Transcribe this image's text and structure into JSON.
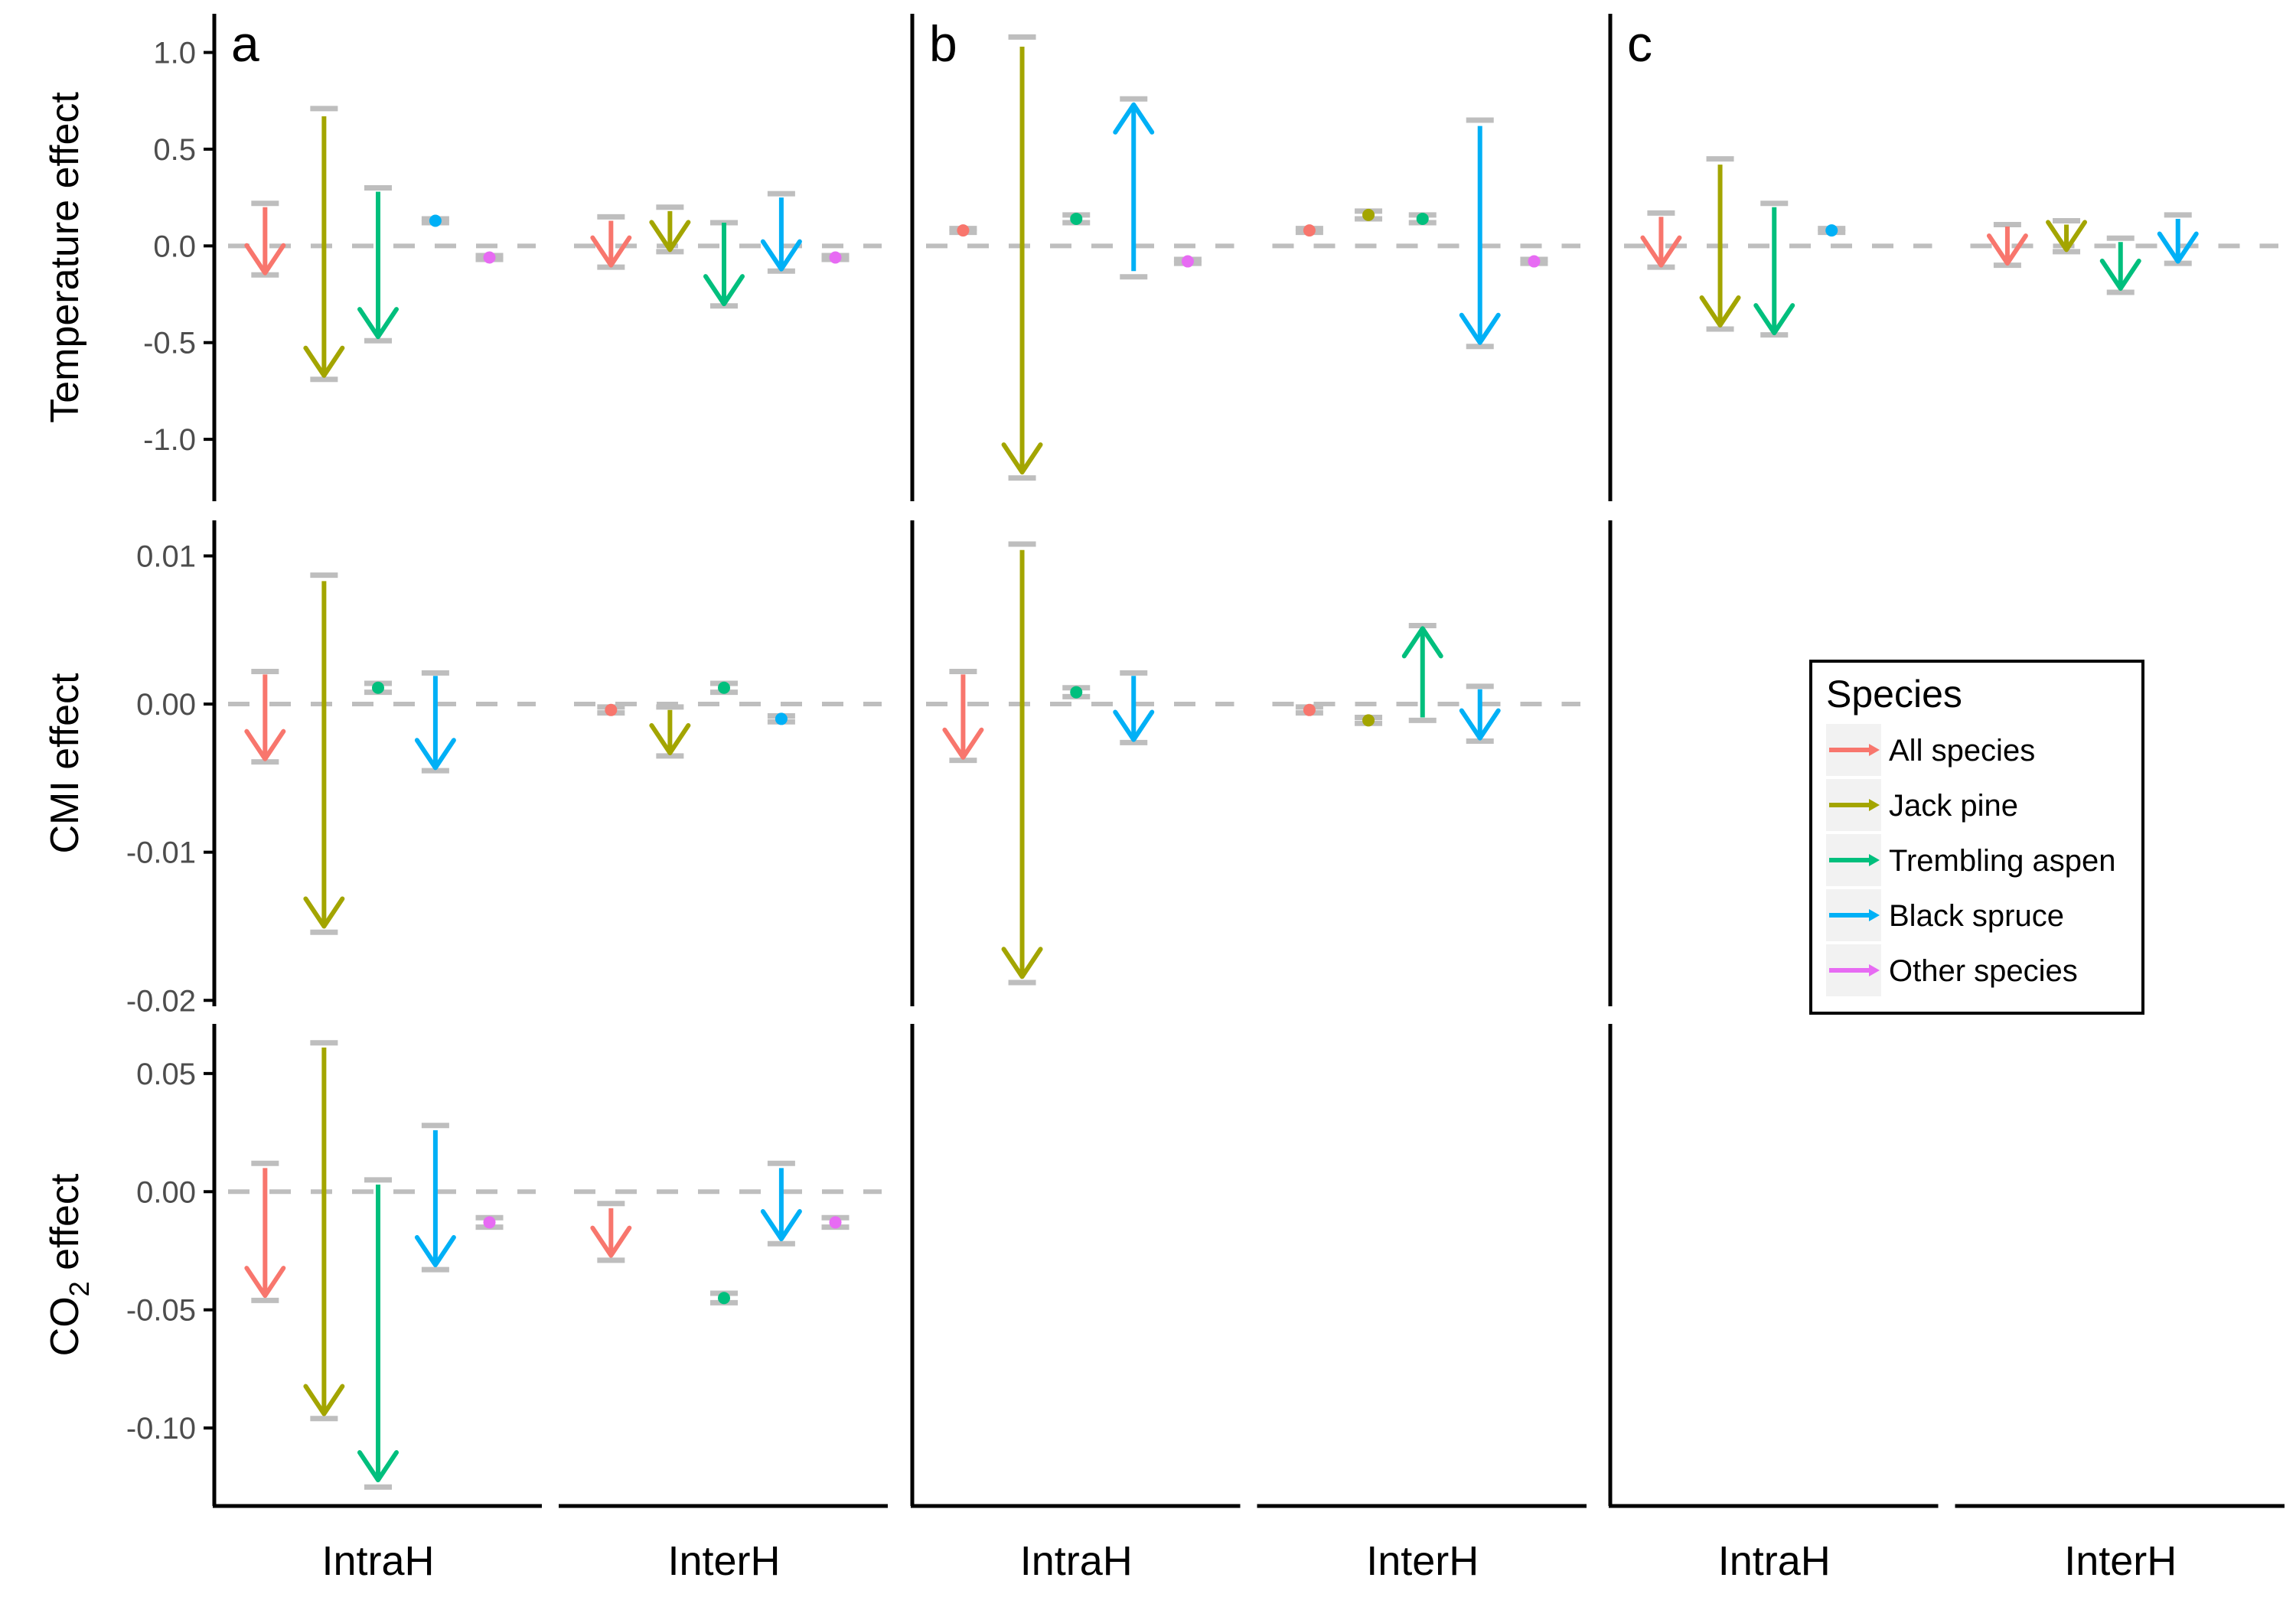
{
  "chart_data": {
    "type": "arrow-effects",
    "panels": [
      {
        "label": "a"
      },
      {
        "label": "b"
      },
      {
        "label": "c"
      }
    ],
    "groups": [
      "IntraH",
      "InterH"
    ],
    "rows": [
      {
        "ylabel": "Temperature effect",
        "ylim": [
          -1.32,
          1.2
        ],
        "yticks": [
          1.0,
          0.5,
          0.0,
          -0.5,
          -1.0
        ],
        "yticklabels": [
          "1.0",
          "0.5",
          "0.0",
          "-0.5",
          "-1.0"
        ]
      },
      {
        "ylabel": "CMI effect",
        "ylim": [
          -0.0204,
          0.0124
        ],
        "yticks": [
          0.01,
          0.0,
          -0.01,
          -0.02
        ],
        "yticklabels": [
          "0.01",
          "0.00",
          "-0.01",
          "-0.02"
        ]
      },
      {
        "ylabel": "CO",
        "ylabel_sub": "2",
        "ylabel_suffix": " effect",
        "ylim": [
          -0.133,
          0.071
        ],
        "yticks": [
          0.05,
          0.0,
          -0.05,
          -0.1
        ],
        "yticklabels": [
          "0.05",
          "0.00",
          "-0.05",
          "-0.10"
        ]
      }
    ],
    "species": [
      {
        "name": "All species",
        "color": "#F8766D"
      },
      {
        "name": "Jack pine",
        "color": "#A3A500"
      },
      {
        "name": "Trembling aspen",
        "color": "#00BF7D"
      },
      {
        "name": "Black spruce",
        "color": "#00B0F6"
      },
      {
        "name": "Other species",
        "color": "#E76BF3"
      }
    ],
    "legend": {
      "title": "Species",
      "position": "inside panel c, CMI row"
    },
    "reference_line": 0,
    "series": [
      {
        "row": 0,
        "panel": 0,
        "group": 0,
        "species": 0,
        "start": 0.2,
        "end": -0.14,
        "ci": [
          -0.15,
          0.22
        ]
      },
      {
        "row": 0,
        "panel": 0,
        "group": 0,
        "species": 1,
        "start": 0.67,
        "end": -0.67,
        "ci": [
          -0.69,
          0.71
        ]
      },
      {
        "row": 0,
        "panel": 0,
        "group": 0,
        "species": 2,
        "start": 0.28,
        "end": -0.47,
        "ci": [
          -0.49,
          0.3
        ]
      },
      {
        "row": 0,
        "panel": 0,
        "group": 0,
        "species": 3,
        "start": 0.13,
        "end": 0.13,
        "ci": [
          0.12,
          0.14
        ]
      },
      {
        "row": 0,
        "panel": 0,
        "group": 0,
        "species": 4,
        "start": -0.06,
        "end": -0.06,
        "ci": [
          -0.07,
          -0.05
        ]
      },
      {
        "row": 0,
        "panel": 0,
        "group": 1,
        "species": 0,
        "start": 0.13,
        "end": -0.1,
        "ci": [
          -0.11,
          0.15
        ]
      },
      {
        "row": 0,
        "panel": 0,
        "group": 1,
        "species": 1,
        "start": 0.18,
        "end": -0.02,
        "ci": [
          -0.03,
          0.2
        ]
      },
      {
        "row": 0,
        "panel": 0,
        "group": 1,
        "species": 2,
        "start": 0.12,
        "end": -0.3,
        "ci": [
          -0.31,
          0.12
        ]
      },
      {
        "row": 0,
        "panel": 0,
        "group": 1,
        "species": 3,
        "start": 0.25,
        "end": -0.12,
        "ci": [
          -0.13,
          0.27
        ]
      },
      {
        "row": 0,
        "panel": 0,
        "group": 1,
        "species": 4,
        "start": -0.06,
        "end": -0.06,
        "ci": [
          -0.07,
          -0.05
        ]
      },
      {
        "row": 0,
        "panel": 1,
        "group": 0,
        "species": 0,
        "start": 0.08,
        "end": 0.08,
        "ci": [
          0.07,
          0.09
        ]
      },
      {
        "row": 0,
        "panel": 1,
        "group": 0,
        "species": 1,
        "start": 1.03,
        "end": -1.17,
        "ci": [
          -1.2,
          1.08
        ]
      },
      {
        "row": 0,
        "panel": 1,
        "group": 0,
        "species": 2,
        "start": 0.14,
        "end": 0.14,
        "ci": [
          0.12,
          0.16
        ]
      },
      {
        "row": 0,
        "panel": 1,
        "group": 0,
        "species": 3,
        "start": -0.13,
        "end": 0.73,
        "ci": [
          -0.16,
          0.76
        ]
      },
      {
        "row": 0,
        "panel": 1,
        "group": 0,
        "species": 4,
        "start": -0.08,
        "end": -0.08,
        "ci": [
          -0.09,
          -0.07
        ]
      },
      {
        "row": 0,
        "panel": 1,
        "group": 1,
        "species": 0,
        "start": 0.08,
        "end": 0.08,
        "ci": [
          0.07,
          0.09
        ]
      },
      {
        "row": 0,
        "panel": 1,
        "group": 1,
        "species": 1,
        "start": 0.16,
        "end": 0.16,
        "ci": [
          0.14,
          0.18
        ]
      },
      {
        "row": 0,
        "panel": 1,
        "group": 1,
        "species": 2,
        "start": 0.14,
        "end": 0.14,
        "ci": [
          0.12,
          0.16
        ]
      },
      {
        "row": 0,
        "panel": 1,
        "group": 1,
        "species": 3,
        "start": 0.62,
        "end": -0.5,
        "ci": [
          -0.52,
          0.65
        ]
      },
      {
        "row": 0,
        "panel": 1,
        "group": 1,
        "species": 4,
        "start": -0.08,
        "end": -0.08,
        "ci": [
          -0.09,
          -0.07
        ]
      },
      {
        "row": 0,
        "panel": 2,
        "group": 0,
        "species": 0,
        "start": 0.15,
        "end": -0.1,
        "ci": [
          -0.11,
          0.17
        ]
      },
      {
        "row": 0,
        "panel": 2,
        "group": 0,
        "species": 1,
        "start": 0.42,
        "end": -0.41,
        "ci": [
          -0.43,
          0.45
        ]
      },
      {
        "row": 0,
        "panel": 2,
        "group": 0,
        "species": 2,
        "start": 0.2,
        "end": -0.45,
        "ci": [
          -0.46,
          0.22
        ]
      },
      {
        "row": 0,
        "panel": 2,
        "group": 0,
        "species": 3,
        "start": 0.08,
        "end": 0.08,
        "ci": [
          0.07,
          0.09
        ]
      },
      {
        "row": 0,
        "panel": 2,
        "group": 1,
        "species": 0,
        "start": 0.1,
        "end": -0.09,
        "ci": [
          -0.1,
          0.11
        ]
      },
      {
        "row": 0,
        "panel": 2,
        "group": 1,
        "species": 1,
        "start": 0.11,
        "end": -0.02,
        "ci": [
          -0.03,
          0.13
        ]
      },
      {
        "row": 0,
        "panel": 2,
        "group": 1,
        "species": 2,
        "start": 0.02,
        "end": -0.22,
        "ci": [
          -0.24,
          0.04
        ]
      },
      {
        "row": 0,
        "panel": 2,
        "group": 1,
        "species": 3,
        "start": 0.14,
        "end": -0.08,
        "ci": [
          -0.09,
          0.16
        ]
      },
      {
        "row": 1,
        "panel": 0,
        "group": 0,
        "species": 0,
        "start": 0.002,
        "end": -0.0037,
        "ci": [
          -0.0039,
          0.0022
        ]
      },
      {
        "row": 1,
        "panel": 0,
        "group": 0,
        "species": 1,
        "start": 0.0083,
        "end": -0.015,
        "ci": [
          -0.0154,
          0.0087
        ]
      },
      {
        "row": 1,
        "panel": 0,
        "group": 0,
        "species": 2,
        "start": 0.0011,
        "end": 0.0011,
        "ci": [
          0.0008,
          0.0014
        ]
      },
      {
        "row": 1,
        "panel": 0,
        "group": 0,
        "species": 3,
        "start": 0.0019,
        "end": -0.0043,
        "ci": [
          -0.0045,
          0.0021
        ]
      },
      {
        "row": 1,
        "panel": 0,
        "group": 1,
        "species": 0,
        "start": -0.0004,
        "end": -0.0004,
        "ci": [
          -0.0006,
          -0.0002
        ]
      },
      {
        "row": 1,
        "panel": 0,
        "group": 1,
        "species": 1,
        "start": -0.0004,
        "end": -0.0033,
        "ci": [
          -0.0035,
          -0.0002
        ]
      },
      {
        "row": 1,
        "panel": 0,
        "group": 1,
        "species": 2,
        "start": 0.0011,
        "end": 0.0011,
        "ci": [
          0.0008,
          0.0014
        ]
      },
      {
        "row": 1,
        "panel": 0,
        "group": 1,
        "species": 3,
        "start": -0.001,
        "end": -0.001,
        "ci": [
          -0.0012,
          -0.0008
        ]
      },
      {
        "row": 1,
        "panel": 1,
        "group": 0,
        "species": 0,
        "start": 0.002,
        "end": -0.0036,
        "ci": [
          -0.0038,
          0.0022
        ]
      },
      {
        "row": 1,
        "panel": 1,
        "group": 0,
        "species": 1,
        "start": 0.0104,
        "end": -0.0184,
        "ci": [
          -0.0188,
          0.0108
        ]
      },
      {
        "row": 1,
        "panel": 1,
        "group": 0,
        "species": 2,
        "start": 0.0008,
        "end": 0.0008,
        "ci": [
          0.0005,
          0.0011
        ]
      },
      {
        "row": 1,
        "panel": 1,
        "group": 0,
        "species": 3,
        "start": 0.0019,
        "end": -0.0024,
        "ci": [
          -0.0026,
          0.0021
        ]
      },
      {
        "row": 1,
        "panel": 1,
        "group": 1,
        "species": 0,
        "start": -0.0004,
        "end": -0.0004,
        "ci": [
          -0.0006,
          -0.0002
        ]
      },
      {
        "row": 1,
        "panel": 1,
        "group": 1,
        "species": 1,
        "start": -0.0011,
        "end": -0.0011,
        "ci": [
          -0.0013,
          -0.0009
        ]
      },
      {
        "row": 1,
        "panel": 1,
        "group": 1,
        "species": 2,
        "start": -0.0009,
        "end": 0.0051,
        "ci": [
          -0.0011,
          0.0053
        ]
      },
      {
        "row": 1,
        "panel": 1,
        "group": 1,
        "species": 3,
        "start": 0.001,
        "end": -0.0023,
        "ci": [
          -0.0025,
          0.0012
        ]
      },
      {
        "row": 2,
        "panel": 0,
        "group": 0,
        "species": 0,
        "start": 0.01,
        "end": -0.044,
        "ci": [
          -0.046,
          0.012
        ]
      },
      {
        "row": 2,
        "panel": 0,
        "group": 0,
        "species": 1,
        "start": 0.061,
        "end": -0.094,
        "ci": [
          -0.096,
          0.063
        ]
      },
      {
        "row": 2,
        "panel": 0,
        "group": 0,
        "species": 2,
        "start": 0.003,
        "end": -0.122,
        "ci": [
          -0.125,
          0.005
        ]
      },
      {
        "row": 2,
        "panel": 0,
        "group": 0,
        "species": 3,
        "start": 0.026,
        "end": -0.031,
        "ci": [
          -0.033,
          0.028
        ]
      },
      {
        "row": 2,
        "panel": 0,
        "group": 0,
        "species": 4,
        "start": -0.013,
        "end": -0.013,
        "ci": [
          -0.015,
          -0.011
        ]
      },
      {
        "row": 2,
        "panel": 0,
        "group": 1,
        "species": 0,
        "start": -0.007,
        "end": -0.027,
        "ci": [
          -0.029,
          -0.005
        ]
      },
      {
        "row": 2,
        "panel": 0,
        "group": 1,
        "species": 2,
        "start": -0.045,
        "end": -0.045,
        "ci": [
          -0.047,
          -0.043
        ]
      },
      {
        "row": 2,
        "panel": 0,
        "group": 1,
        "species": 3,
        "start": 0.01,
        "end": -0.02,
        "ci": [
          -0.022,
          0.012
        ]
      },
      {
        "row": 2,
        "panel": 0,
        "group": 1,
        "species": 4,
        "start": -0.013,
        "end": -0.013,
        "ci": [
          -0.015,
          -0.011
        ]
      }
    ]
  }
}
